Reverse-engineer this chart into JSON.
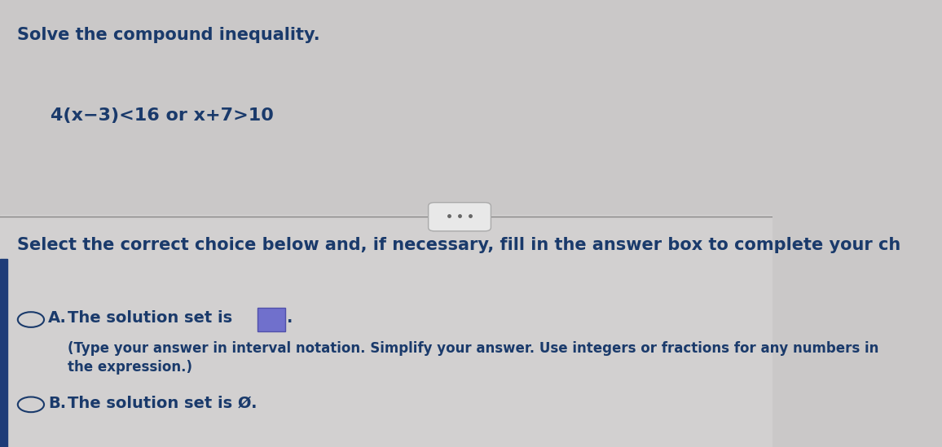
{
  "bg_color_top": "#cac8c8",
  "bg_color_bottom": "#d2d0d0",
  "title_text": "Solve the compound inequality.",
  "inequality_text": "4(x−3)<16 or x+7>10",
  "select_text": "Select the correct choice below and, if necessary, fill in the answer box to complete your ch",
  "option_a_text1": "The solution set is",
  "option_a_text2_line1": "(Type your answer in interval notation. Simplify your answer. Use integers or fractions for any numbers in",
  "option_a_text2_line2": "the expression.)",
  "option_b_text": "The solution set is Ø.",
  "text_color": "#1a3a6b",
  "circle_edge_color": "#1a3a6b",
  "box_fill": "#7070cc",
  "box_edge": "#5050aa",
  "left_bar_color": "#1e3c78",
  "divider_color": "#888888",
  "pill_face": "#e8e8e8",
  "pill_edge": "#aaaaaa",
  "dot_color": "#666666",
  "font_size_title": 15,
  "font_size_inequality": 16,
  "font_size_select": 15,
  "font_size_options": 14,
  "font_size_small": 12
}
